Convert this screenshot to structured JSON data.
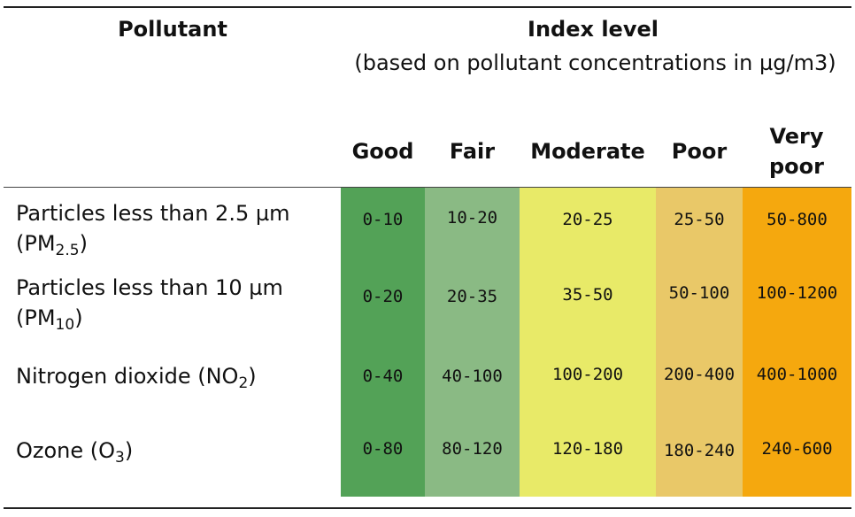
{
  "table": {
    "header": {
      "pollutant": "Pollutant",
      "index_level": "Index level",
      "index_note": "(based on pollutant concentrations in µg/m3)"
    },
    "levels": [
      {
        "label": "Good",
        "color": "#53a257"
      },
      {
        "label": "Fair",
        "color": "#8aba84"
      },
      {
        "label": "Moderate",
        "color": "#e8ea68"
      },
      {
        "label": "Poor",
        "color": "#e9c868"
      },
      {
        "label": "Very poor",
        "color": "#f5a80e"
      }
    ],
    "rows": [
      {
        "name": "Particles less than 2.5 µm",
        "formula_prefix": "(PM",
        "formula_sub": "2.5",
        "formula_suffix": ")",
        "values": [
          "0-10",
          "10-20",
          "20-25",
          "25-50",
          "50-800"
        ]
      },
      {
        "name": "Particles less than 10 µm",
        "formula_prefix": "(PM",
        "formula_sub": "10",
        "formula_suffix": ")",
        "values": [
          "0-20",
          "20-35",
          "35-50",
          "50-100",
          "100-1200"
        ]
      },
      {
        "name": "Nitrogen dioxide (NO",
        "formula_sub": "2",
        "formula_suffix": ")",
        "values": [
          "0-40",
          "40-100",
          "100-200",
          "200-400",
          "400-1000"
        ]
      },
      {
        "name": "Ozone (O",
        "formula_sub": "3",
        "formula_suffix": ")",
        "values": [
          "0-80",
          "80-120",
          "120-180",
          "180-240",
          "240-600"
        ]
      }
    ]
  }
}
